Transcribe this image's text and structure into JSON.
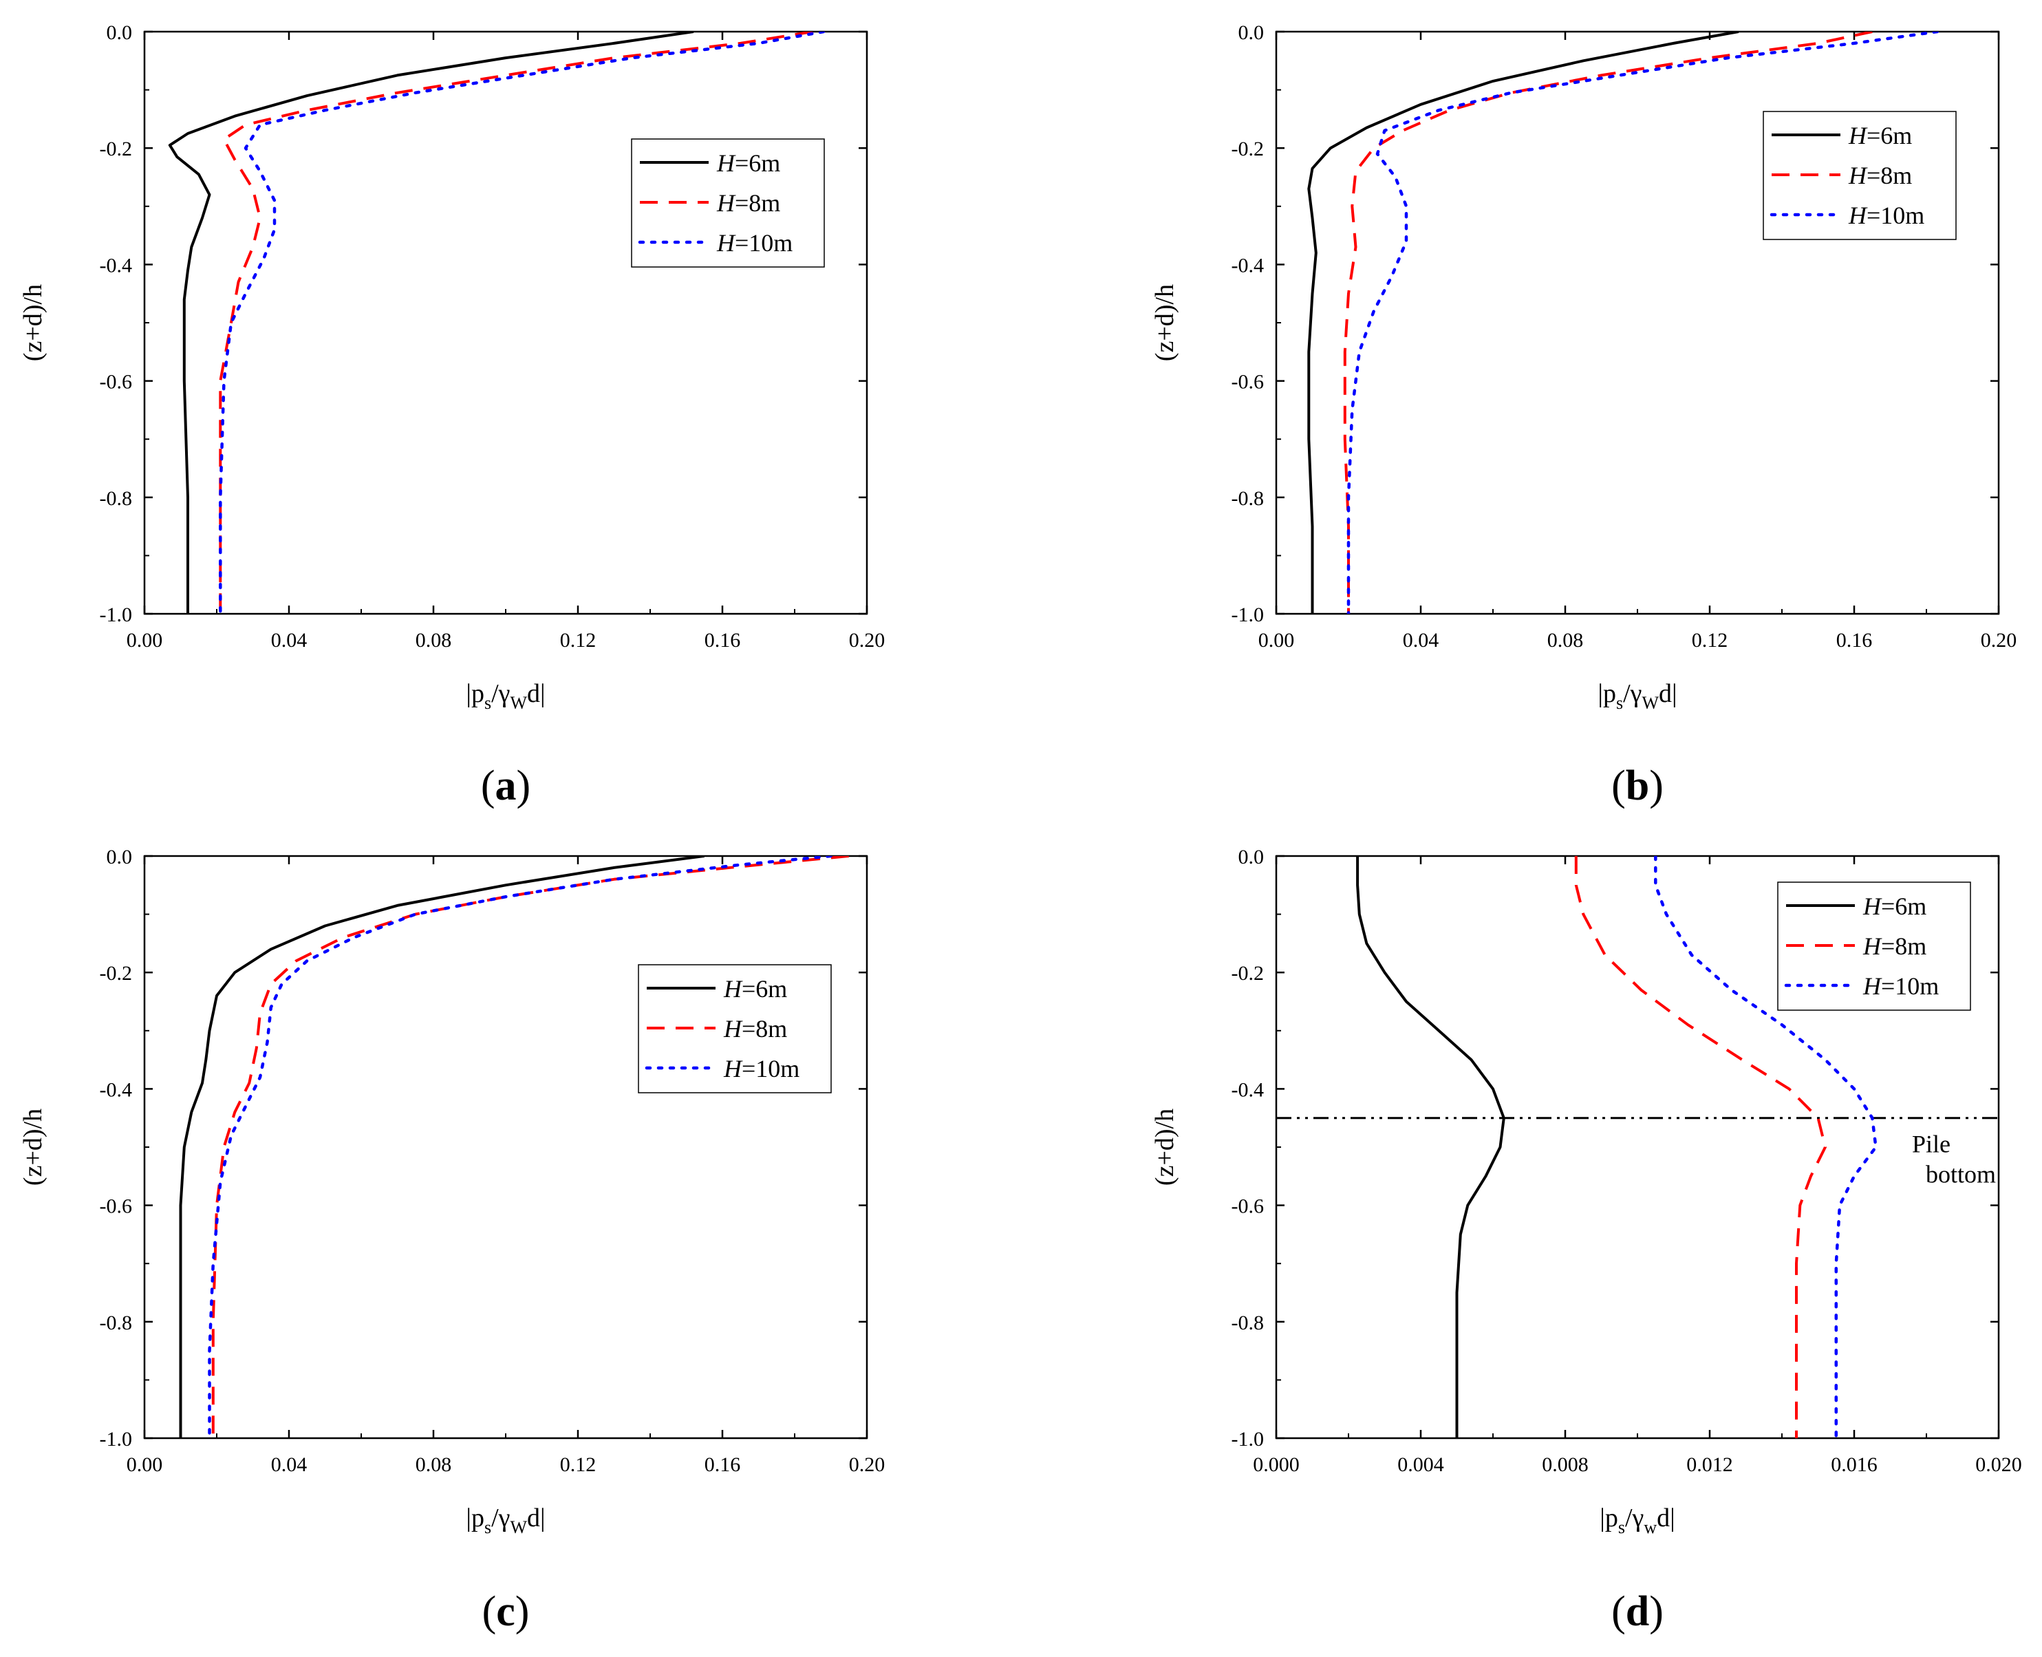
{
  "chart_data": [
    {
      "type": "line",
      "panel": "a",
      "panel_label": "(a)",
      "xlabel": "|p_s/γ_W d|",
      "ylabel": "(z+d)/h",
      "xlim": [
        0,
        0.2
      ],
      "ylim": [
        -1.0,
        0.0
      ],
      "xticks": [
        "0.00",
        "0.04",
        "0.08",
        "0.12",
        "0.16",
        "0.20"
      ],
      "yticks": [
        "0.0",
        "-0.2",
        "-0.4",
        "-0.6",
        "-0.8",
        "-1.0"
      ],
      "legend_position": "upper-right",
      "series": [
        {
          "name": "H=6m",
          "style": "solid",
          "color": "#000000",
          "points": [
            [
              0.152,
              0.0
            ],
            [
              0.13,
              -0.02
            ],
            [
              0.1,
              -0.045
            ],
            [
              0.07,
              -0.075
            ],
            [
              0.045,
              -0.11
            ],
            [
              0.025,
              -0.145
            ],
            [
              0.012,
              -0.175
            ],
            [
              0.007,
              -0.195
            ],
            [
              0.009,
              -0.215
            ],
            [
              0.015,
              -0.245
            ],
            [
              0.018,
              -0.28
            ],
            [
              0.016,
              -0.32
            ],
            [
              0.013,
              -0.37
            ],
            [
              0.012,
              -0.41
            ],
            [
              0.011,
              -0.46
            ],
            [
              0.011,
              -0.6
            ],
            [
              0.012,
              -0.8
            ],
            [
              0.012,
              -1.0
            ]
          ]
        },
        {
          "name": "H=8m",
          "style": "dashed",
          "color": "#ff0000",
          "points": [
            [
              0.185,
              0.0
            ],
            [
              0.165,
              -0.02
            ],
            [
              0.13,
              -0.045
            ],
            [
              0.1,
              -0.075
            ],
            [
              0.07,
              -0.105
            ],
            [
              0.045,
              -0.135
            ],
            [
              0.028,
              -0.16
            ],
            [
              0.022,
              -0.185
            ],
            [
              0.025,
              -0.22
            ],
            [
              0.03,
              -0.27
            ],
            [
              0.032,
              -0.32
            ],
            [
              0.03,
              -0.37
            ],
            [
              0.026,
              -0.43
            ],
            [
              0.024,
              -0.5
            ],
            [
              0.021,
              -0.6
            ],
            [
              0.021,
              -0.8
            ],
            [
              0.021,
              -1.0
            ]
          ]
        },
        {
          "name": "H=10m",
          "style": "dotted",
          "color": "#0000ff",
          "points": [
            [
              0.188,
              0.0
            ],
            [
              0.17,
              -0.02
            ],
            [
              0.135,
              -0.045
            ],
            [
              0.105,
              -0.075
            ],
            [
              0.075,
              -0.105
            ],
            [
              0.05,
              -0.135
            ],
            [
              0.032,
              -0.16
            ],
            [
              0.028,
              -0.2
            ],
            [
              0.032,
              -0.24
            ],
            [
              0.036,
              -0.29
            ],
            [
              0.036,
              -0.34
            ],
            [
              0.033,
              -0.39
            ],
            [
              0.028,
              -0.45
            ],
            [
              0.024,
              -0.5
            ],
            [
              0.022,
              -0.6
            ],
            [
              0.021,
              -0.8
            ],
            [
              0.021,
              -1.0
            ]
          ]
        }
      ]
    },
    {
      "type": "line",
      "panel": "b",
      "panel_label": "(b)",
      "xlabel": "|p_s/γ_W d|",
      "ylabel": "(z+d)/h",
      "xlim": [
        0,
        0.2
      ],
      "ylim": [
        -1.0,
        0.0
      ],
      "xticks": [
        "0.00",
        "0.04",
        "0.08",
        "0.12",
        "0.16",
        "0.20"
      ],
      "yticks": [
        "0.0",
        "-0.2",
        "-0.4",
        "-0.6",
        "-0.8",
        "-1.0"
      ],
      "legend_position": "upper-right",
      "series": [
        {
          "name": "H=6m",
          "style": "solid",
          "color": "#000000",
          "points": [
            [
              0.128,
              0.0
            ],
            [
              0.11,
              -0.02
            ],
            [
              0.085,
              -0.05
            ],
            [
              0.06,
              -0.085
            ],
            [
              0.04,
              -0.125
            ],
            [
              0.025,
              -0.165
            ],
            [
              0.015,
              -0.2
            ],
            [
              0.01,
              -0.235
            ],
            [
              0.009,
              -0.27
            ],
            [
              0.01,
              -0.32
            ],
            [
              0.011,
              -0.38
            ],
            [
              0.01,
              -0.45
            ],
            [
              0.009,
              -0.55
            ],
            [
              0.009,
              -0.7
            ],
            [
              0.01,
              -0.85
            ],
            [
              0.01,
              -1.0
            ]
          ]
        },
        {
          "name": "H=8m",
          "style": "dashed",
          "color": "#ff0000",
          "points": [
            [
              0.165,
              0.0
            ],
            [
              0.15,
              -0.02
            ],
            [
              0.12,
              -0.045
            ],
            [
              0.09,
              -0.075
            ],
            [
              0.065,
              -0.105
            ],
            [
              0.048,
              -0.135
            ],
            [
              0.035,
              -0.17
            ],
            [
              0.027,
              -0.2
            ],
            [
              0.022,
              -0.24
            ],
            [
              0.021,
              -0.3
            ],
            [
              0.022,
              -0.37
            ],
            [
              0.02,
              -0.45
            ],
            [
              0.019,
              -0.55
            ],
            [
              0.019,
              -0.7
            ],
            [
              0.02,
              -0.85
            ],
            [
              0.02,
              -1.0
            ]
          ]
        },
        {
          "name": "H=10m",
          "style": "dotted",
          "color": "#0000ff",
          "points": [
            [
              0.183,
              0.0
            ],
            [
              0.16,
              -0.02
            ],
            [
              0.125,
              -0.045
            ],
            [
              0.095,
              -0.075
            ],
            [
              0.065,
              -0.105
            ],
            [
              0.045,
              -0.135
            ],
            [
              0.03,
              -0.17
            ],
            [
              0.028,
              -0.21
            ],
            [
              0.033,
              -0.25
            ],
            [
              0.036,
              -0.3
            ],
            [
              0.036,
              -0.36
            ],
            [
              0.032,
              -0.42
            ],
            [
              0.027,
              -0.48
            ],
            [
              0.023,
              -0.55
            ],
            [
              0.021,
              -0.65
            ],
            [
              0.02,
              -0.8
            ],
            [
              0.02,
              -1.0
            ]
          ]
        }
      ]
    },
    {
      "type": "line",
      "panel": "c",
      "panel_label": "(c)",
      "xlabel": "|p_s/γ_W d|",
      "ylabel": "(z+d)/h",
      "xlim": [
        0,
        0.2
      ],
      "ylim": [
        -1.0,
        0.0
      ],
      "xticks": [
        "0.00",
        "0.04",
        "0.08",
        "0.12",
        "0.16",
        "0.20"
      ],
      "yticks": [
        "0.0",
        "-0.2",
        "-0.4",
        "-0.6",
        "-0.8",
        "-1.0"
      ],
      "legend_position": "right",
      "series": [
        {
          "name": "H=6m",
          "style": "solid",
          "color": "#000000",
          "points": [
            [
              0.155,
              0.0
            ],
            [
              0.13,
              -0.02
            ],
            [
              0.1,
              -0.05
            ],
            [
              0.07,
              -0.085
            ],
            [
              0.05,
              -0.12
            ],
            [
              0.035,
              -0.16
            ],
            [
              0.025,
              -0.2
            ],
            [
              0.02,
              -0.24
            ],
            [
              0.018,
              -0.3
            ],
            [
              0.017,
              -0.35
            ],
            [
              0.016,
              -0.39
            ],
            [
              0.013,
              -0.44
            ],
            [
              0.011,
              -0.5
            ],
            [
              0.01,
              -0.6
            ],
            [
              0.01,
              -0.8
            ],
            [
              0.01,
              -1.0
            ]
          ]
        },
        {
          "name": "H=8m",
          "style": "dashed",
          "color": "#ff0000",
          "points": [
            [
              0.195,
              0.0
            ],
            [
              0.17,
              -0.015
            ],
            [
              0.13,
              -0.04
            ],
            [
              0.1,
              -0.07
            ],
            [
              0.075,
              -0.1
            ],
            [
              0.055,
              -0.14
            ],
            [
              0.042,
              -0.18
            ],
            [
              0.035,
              -0.22
            ],
            [
              0.032,
              -0.27
            ],
            [
              0.031,
              -0.33
            ],
            [
              0.029,
              -0.39
            ],
            [
              0.025,
              -0.44
            ],
            [
              0.022,
              -0.5
            ],
            [
              0.02,
              -0.6
            ],
            [
              0.019,
              -0.8
            ],
            [
              0.019,
              -1.0
            ]
          ]
        },
        {
          "name": "H=10m",
          "style": "dotted",
          "color": "#0000ff",
          "points": [
            [
              0.19,
              0.0
            ],
            [
              0.165,
              -0.015
            ],
            [
              0.13,
              -0.04
            ],
            [
              0.1,
              -0.07
            ],
            [
              0.075,
              -0.1
            ],
            [
              0.058,
              -0.14
            ],
            [
              0.045,
              -0.18
            ],
            [
              0.038,
              -0.22
            ],
            [
              0.035,
              -0.26
            ],
            [
              0.034,
              -0.32
            ],
            [
              0.032,
              -0.38
            ],
            [
              0.028,
              -0.43
            ],
            [
              0.024,
              -0.48
            ],
            [
              0.021,
              -0.56
            ],
            [
              0.019,
              -0.7
            ],
            [
              0.018,
              -0.85
            ],
            [
              0.018,
              -1.0
            ]
          ]
        }
      ]
    },
    {
      "type": "line",
      "panel": "d",
      "panel_label": "(d)",
      "xlabel": "|p_s/γ_w d|",
      "ylabel": "(z+d)/h",
      "xlim": [
        0,
        0.02
      ],
      "ylim": [
        -1.0,
        0.0
      ],
      "xticks": [
        "0.000",
        "0.004",
        "0.008",
        "0.012",
        "0.016",
        "0.020"
      ],
      "yticks": [
        "0.0",
        "-0.2",
        "-0.4",
        "-0.6",
        "-0.8",
        "-1.0"
      ],
      "legend_position": "upper-right",
      "annotation": {
        "text_line1": "Pile",
        "text_line2": "bottom",
        "y": -0.45
      },
      "series": [
        {
          "name": "H=6m",
          "style": "solid",
          "color": "#000000",
          "points": [
            [
              0.00225,
              0.0
            ],
            [
              0.00225,
              -0.05
            ],
            [
              0.0023,
              -0.1
            ],
            [
              0.0025,
              -0.15
            ],
            [
              0.003,
              -0.2
            ],
            [
              0.0036,
              -0.25
            ],
            [
              0.0045,
              -0.3
            ],
            [
              0.0054,
              -0.35
            ],
            [
              0.006,
              -0.4
            ],
            [
              0.0063,
              -0.45
            ],
            [
              0.0062,
              -0.5
            ],
            [
              0.0058,
              -0.55
            ],
            [
              0.0053,
              -0.6
            ],
            [
              0.0051,
              -0.65
            ],
            [
              0.005,
              -0.75
            ],
            [
              0.005,
              -1.0
            ]
          ]
        },
        {
          "name": "H=8m",
          "style": "dashed",
          "color": "#ff0000",
          "points": [
            [
              0.0083,
              0.0
            ],
            [
              0.0083,
              -0.05
            ],
            [
              0.0085,
              -0.1
            ],
            [
              0.0091,
              -0.17
            ],
            [
              0.0101,
              -0.23
            ],
            [
              0.0114,
              -0.29
            ],
            [
              0.0129,
              -0.35
            ],
            [
              0.0142,
              -0.4
            ],
            [
              0.015,
              -0.45
            ],
            [
              0.0152,
              -0.5
            ],
            [
              0.0148,
              -0.55
            ],
            [
              0.0145,
              -0.6
            ],
            [
              0.0144,
              -0.7
            ],
            [
              0.0144,
              -1.0
            ]
          ]
        },
        {
          "name": "H=10m",
          "style": "dotted",
          "color": "#0000ff",
          "points": [
            [
              0.0105,
              0.0
            ],
            [
              0.0105,
              -0.05
            ],
            [
              0.0108,
              -0.1
            ],
            [
              0.0115,
              -0.17
            ],
            [
              0.0126,
              -0.23
            ],
            [
              0.014,
              -0.29
            ],
            [
              0.0152,
              -0.35
            ],
            [
              0.016,
              -0.4
            ],
            [
              0.0165,
              -0.45
            ],
            [
              0.0166,
              -0.5
            ],
            [
              0.016,
              -0.55
            ],
            [
              0.0156,
              -0.6
            ],
            [
              0.0155,
              -0.7
            ],
            [
              0.0155,
              -1.0
            ]
          ]
        }
      ]
    }
  ]
}
